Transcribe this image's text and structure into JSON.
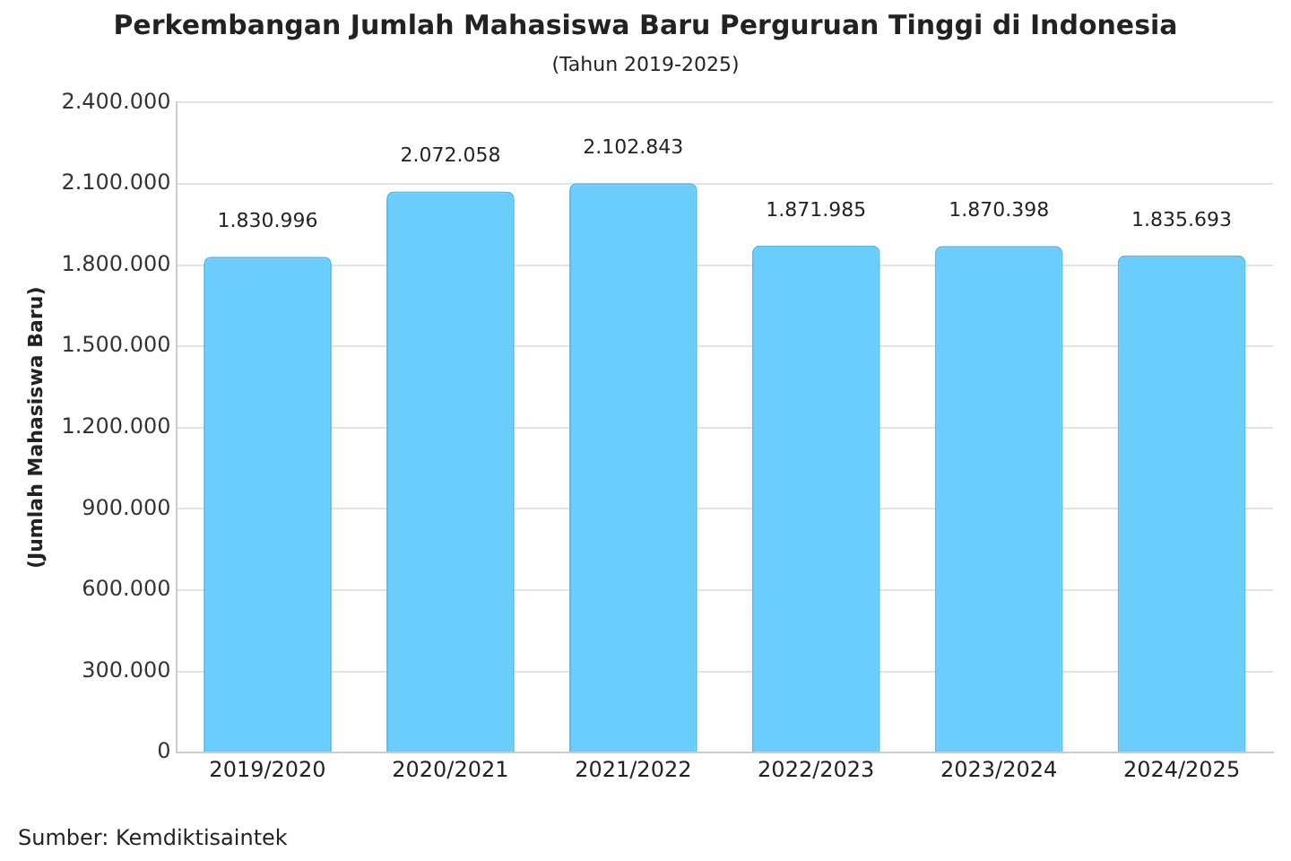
{
  "chart_data": {
    "type": "bar",
    "title": "Perkembangan Jumlah Mahasiswa Baru Perguruan Tinggi di Indonesia",
    "subtitle": "(Tahun 2019-2025)",
    "ylabel": "(Jumlah Mahasiswa Baru)",
    "categories": [
      "2019/2020",
      "2020/2021",
      "2021/2022",
      "2022/2023",
      "2023/2024",
      "2024/2025"
    ],
    "values": [
      1830996,
      2072058,
      2102843,
      1871985,
      1870398,
      1835693
    ],
    "value_labels": [
      "1.830.996",
      "2.072.058",
      "2.102.843",
      "1.871.985",
      "1.870.398",
      "1.835.693"
    ],
    "color": "#6acdfc",
    "ylim": [
      0,
      2400000
    ],
    "yticks": [
      {
        "value": 0,
        "label": "0"
      },
      {
        "value": 300000,
        "label": "300.000"
      },
      {
        "value": 600000,
        "label": "600.000"
      },
      {
        "value": 900000,
        "label": "900.000"
      },
      {
        "value": 1200000,
        "label": "1.200.000"
      },
      {
        "value": 1500000,
        "label": "1.500.000"
      },
      {
        "value": 1800000,
        "label": "1.800.000"
      },
      {
        "value": 2100000,
        "label": "2.100.000"
      },
      {
        "value": 2400000,
        "label": "2.400.000"
      }
    ],
    "grid": "y",
    "legend": false,
    "annotations": [
      "Sumber: Kemdiktisaintek"
    ]
  }
}
